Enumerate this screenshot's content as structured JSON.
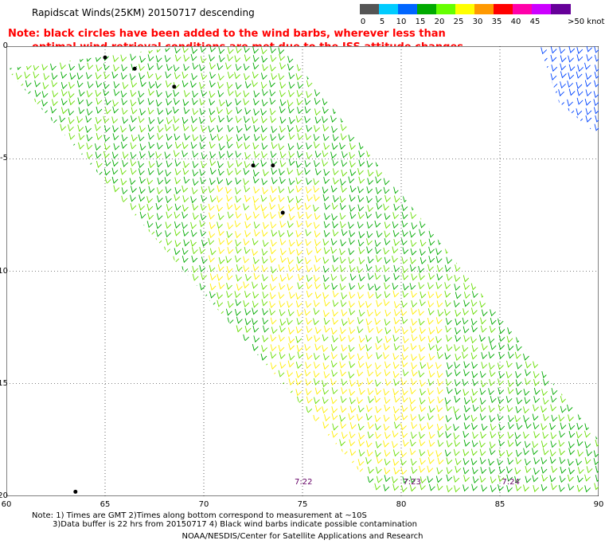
{
  "title": "Rapidscat Winds(25KM) 20150717 descending",
  "note_red": {
    "line1": "Note: black circles have been added to the wind barbs, wherever less than",
    "line2": "optimal wind retrieval conditions are met due to the ISS attitude changes."
  },
  "legend": {
    "labels": [
      "0",
      "5",
      "10",
      "15",
      "20",
      "25",
      "30",
      "35",
      "40",
      "45",
      ">50 knots"
    ],
    "colors": [
      "#555555",
      "#00ccff",
      "#0066ff",
      "#00aa00",
      "#66ff00",
      "#ffff00",
      "#ff9900",
      "#ff0000",
      "#ff00aa",
      "#cc00ff",
      "#660099"
    ]
  },
  "map": {
    "lon_range": [
      60,
      90
    ],
    "lat_range": [
      -20,
      0
    ],
    "x_ticks": [
      "60",
      "65",
      "70",
      "75",
      "80",
      "85",
      "90"
    ],
    "y_ticks": [
      "0",
      "-5",
      "-10",
      "-15",
      "-20"
    ],
    "swath_main": [
      [
        69,
        0
      ],
      [
        74,
        0
      ],
      [
        90,
        -17.5
      ],
      [
        90,
        -20
      ],
      [
        79,
        -20
      ],
      [
        69,
        -10
      ],
      [
        60,
        -1
      ]
    ],
    "swath_edge_ne": [
      [
        87,
        0
      ],
      [
        90,
        0
      ],
      [
        90,
        -4
      ],
      [
        88,
        -2.5
      ]
    ],
    "time_labels": [
      {
        "text": "7:22",
        "lon": 75,
        "lat": -19.5
      },
      {
        "text": "7:23",
        "lon": 80.5,
        "lat": -19.5
      },
      {
        "text": "7:24",
        "lon": 85.5,
        "lat": -19.5
      }
    ],
    "wind_colors": {
      "green_dark": "#00aa00",
      "green_light": "#66dd00",
      "yellow": "#ffee00",
      "blue": "#0044ff",
      "black": "#000000"
    }
  },
  "footer": {
    "note_line1": "Note: 1) Times are GMT 2)Times along bottom correspond to measurement at ~10S",
    "note_line2": "3)Data buffer is 22 hrs from 20150717 4) Black wind barbs indicate possible contamination",
    "credit": "NOAA/NESDIS/Center for Satellite Applications and Research"
  }
}
